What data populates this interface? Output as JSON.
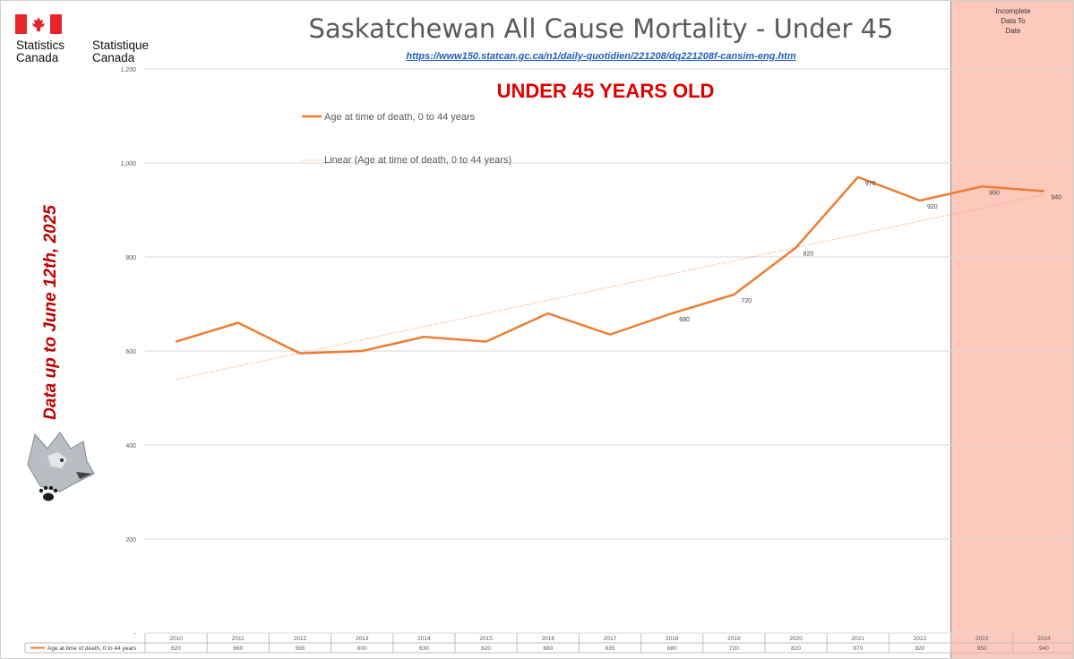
{
  "header": {
    "title": "Saskatchewan All Cause Mortality - Under 45",
    "source_url": "https://www150.statcan.gc.ca/n1/daily-quotidien/221208/dq221208f-cansim-eng.htm",
    "subtitle": "UNDER 45 YEARS OLD",
    "side_note": "Data up to June 12th, 2025",
    "incomplete_note": [
      "Incomplete",
      "Data To",
      "Date"
    ]
  },
  "logo": {
    "en_line1": "Statistics",
    "en_line2": "Canada",
    "fr_line1": "Statistique",
    "fr_line2": "Canada",
    "flag_color": "#e8242c"
  },
  "legend": {
    "series_label": "Age at time of death, 0 to 44 years",
    "trend_label": "Linear (Age at time of death, 0 to 44 years)"
  },
  "colors": {
    "series": "#ed7d31",
    "trend": "#f4a46a",
    "shade": "#fcc9bc",
    "grid": "#d9d9d9"
  },
  "chart_data": {
    "type": "line",
    "categories": [
      "2010",
      "2011",
      "2012",
      "2013",
      "2014",
      "2015",
      "2016",
      "2017",
      "2018",
      "2019",
      "2020",
      "2021",
      "2022",
      "2023",
      "2024"
    ],
    "series": [
      {
        "name": "Age at time of death, 0 to 44 years",
        "values": [
          620,
          660,
          595,
          600,
          630,
          620,
          680,
          635,
          680,
          720,
          820,
          970,
          920,
          950,
          940
        ]
      }
    ],
    "trendline": {
      "type": "linear",
      "name": "Linear (Age at time of death, 0 to 44 years)"
    },
    "data_labels": [
      {
        "category": "2018",
        "value": "680"
      },
      {
        "category": "2019",
        "value": "720"
      },
      {
        "category": "2020",
        "value": "820"
      },
      {
        "category": "2021",
        "value": "970"
      },
      {
        "category": "2022",
        "value": "920"
      },
      {
        "category": "2023",
        "value": "950"
      },
      {
        "category": "2024",
        "value": "940"
      }
    ],
    "ylim": [
      0,
      1200
    ],
    "yticks": [
      0,
      200,
      400,
      600,
      800,
      1000,
      1200
    ],
    "ytick_labels": [
      "-",
      "200",
      "400",
      "600",
      "800",
      "1,000",
      "1,200"
    ],
    "grid": true,
    "data_table": true,
    "shaded_categories": [
      "2023",
      "2024"
    ]
  }
}
